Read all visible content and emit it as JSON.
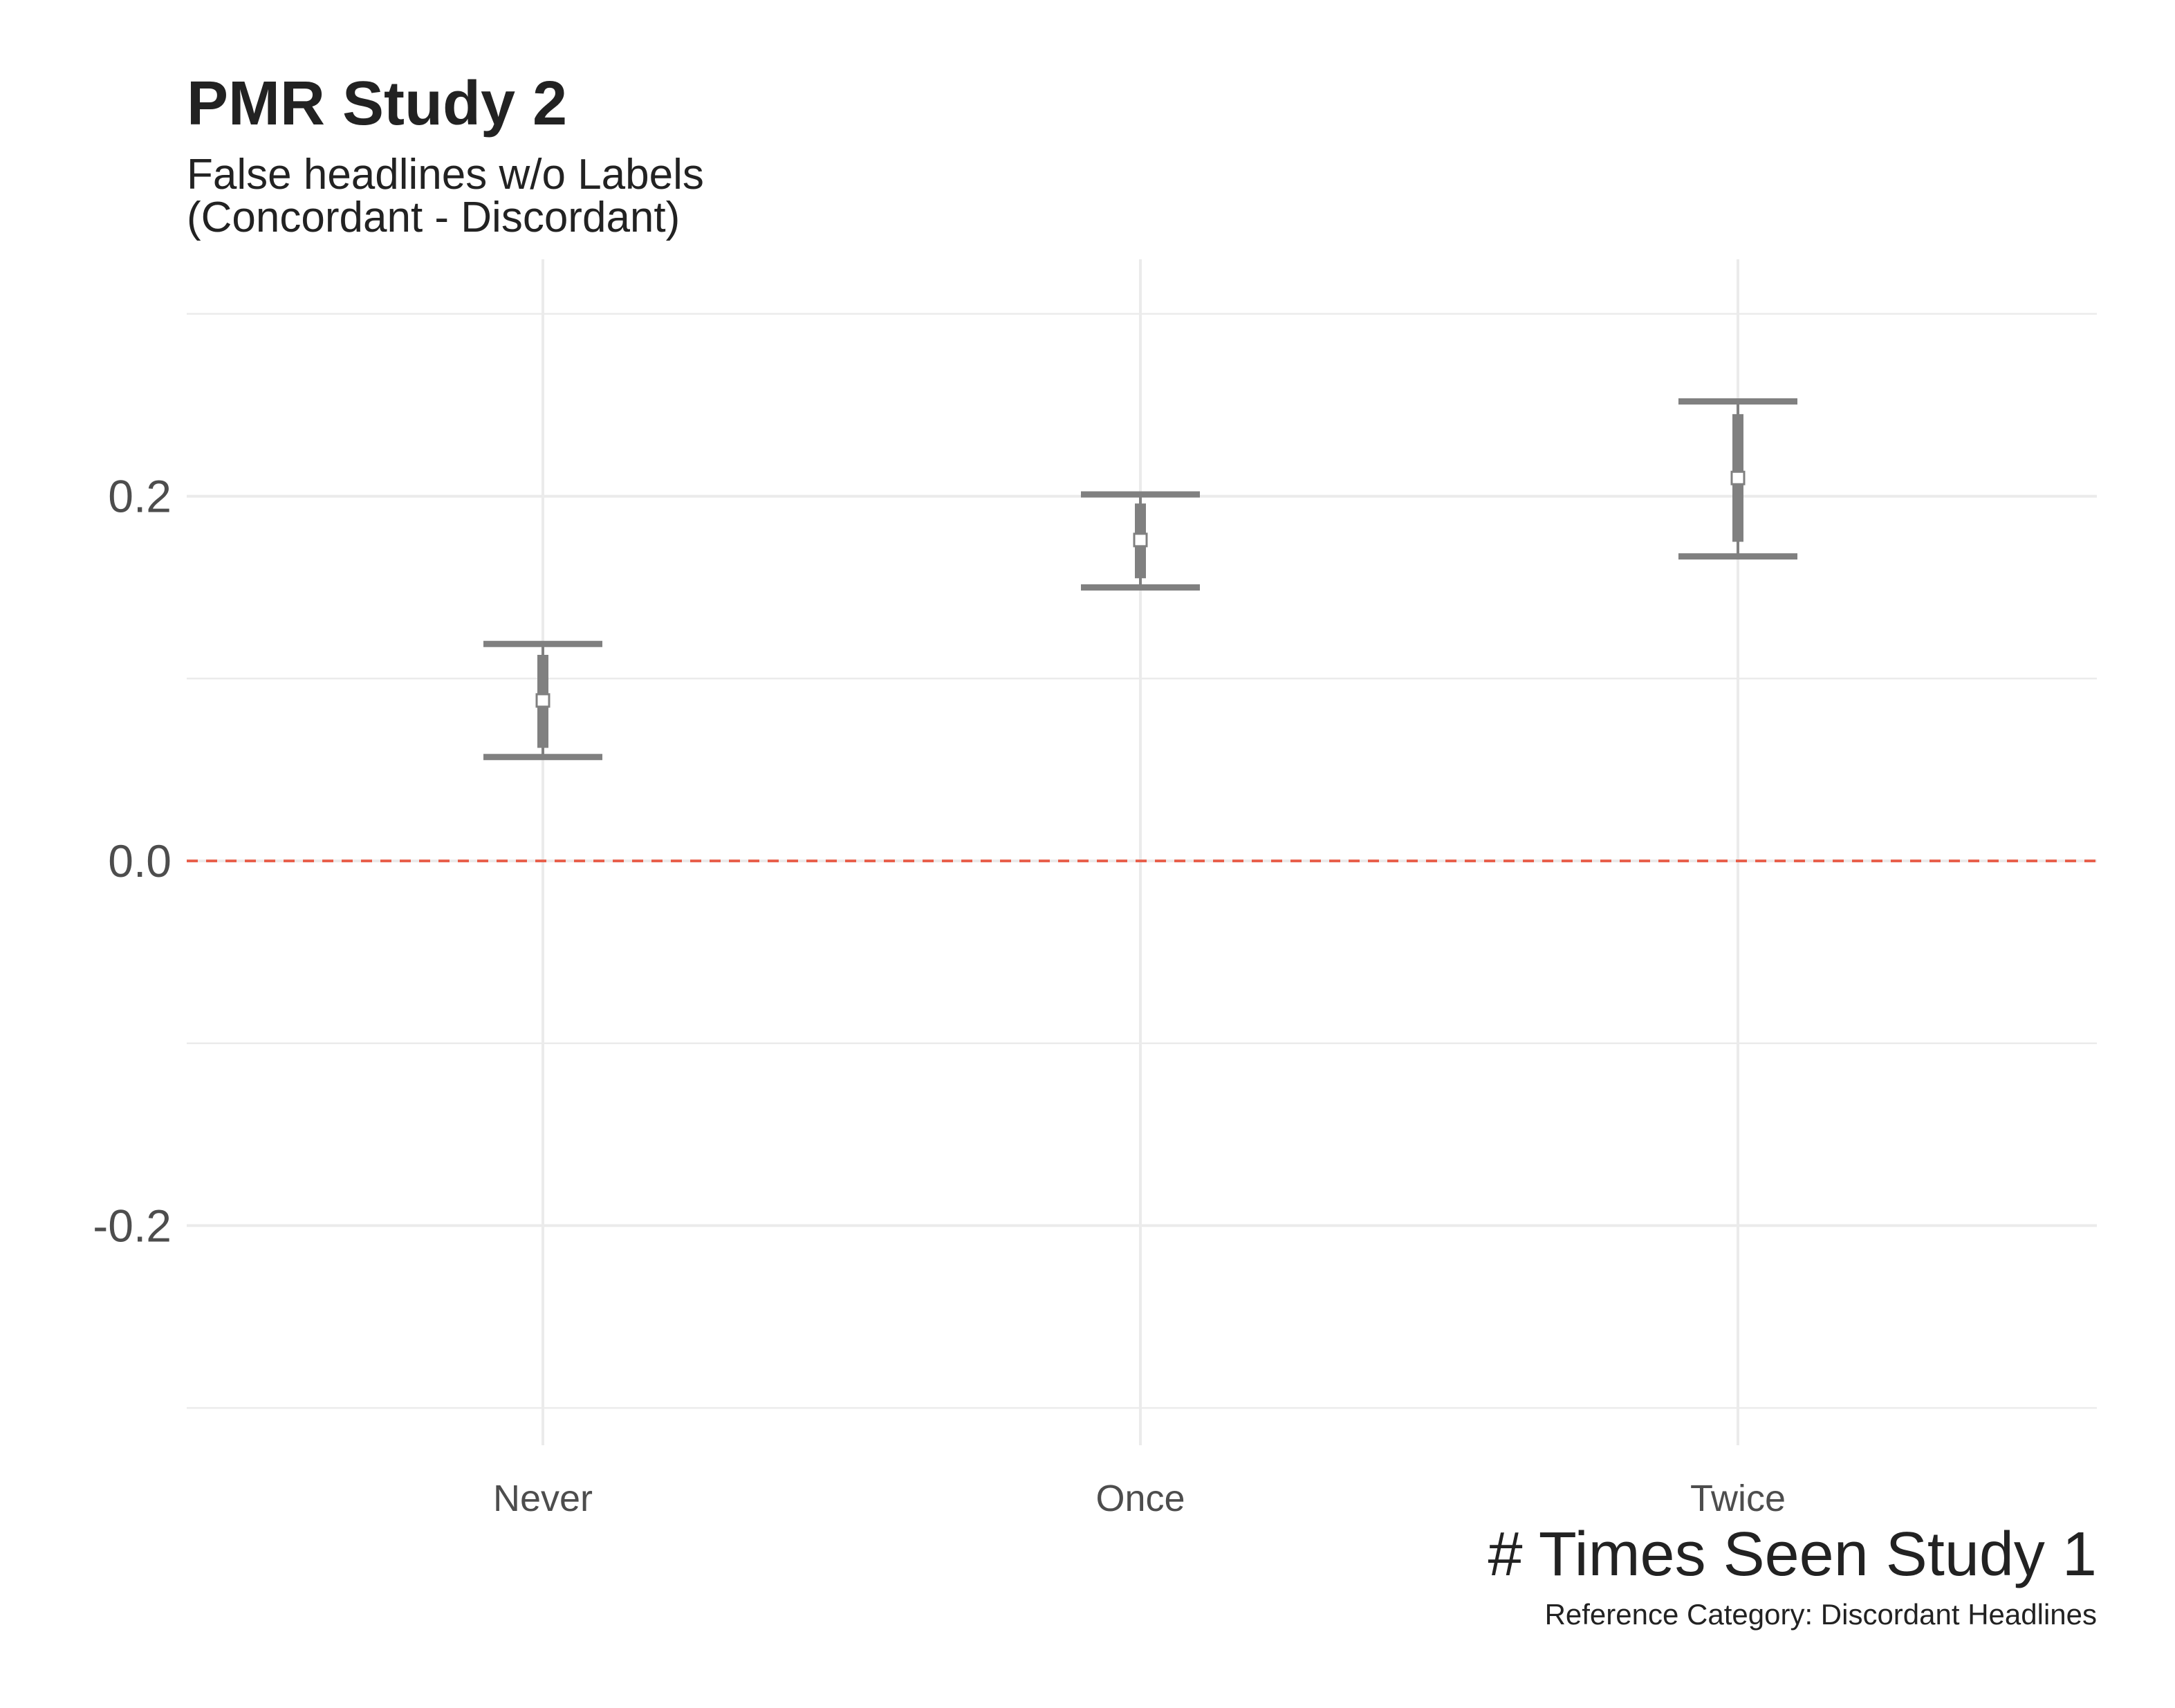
{
  "chart_data": {
    "type": "errorbar",
    "title": "PMR Study 2",
    "subtitle": [
      "False headlines w/o Labels",
      "(Concordant - Discordant)"
    ],
    "xlabel": "# Times Seen Study 1",
    "ylabel": "",
    "caption": "Reference Category: Discordant Headlines",
    "categories": [
      "Never",
      "Once",
      "Twice"
    ],
    "estimates": [
      0.088,
      0.176,
      0.21
    ],
    "ci_outer": [
      [
        0.057,
        0.119
      ],
      [
        0.15,
        0.201
      ],
      [
        0.167,
        0.252
      ]
    ],
    "ci_inner": [
      [
        0.062,
        0.113
      ],
      [
        0.155,
        0.196
      ],
      [
        0.175,
        0.245
      ]
    ],
    "ylim": [
      -0.3,
      0.3
    ],
    "yticks": [
      -0.2,
      0.0,
      0.2
    ],
    "ytick_labels": [
      "-0.2",
      "0.0",
      "0.2"
    ],
    "reference_line": 0.0,
    "grid": true,
    "colors": {
      "interval": "#808080",
      "reference": "#e8604c",
      "grid": "#ebebeb",
      "point_fill": "#ffffff"
    }
  }
}
